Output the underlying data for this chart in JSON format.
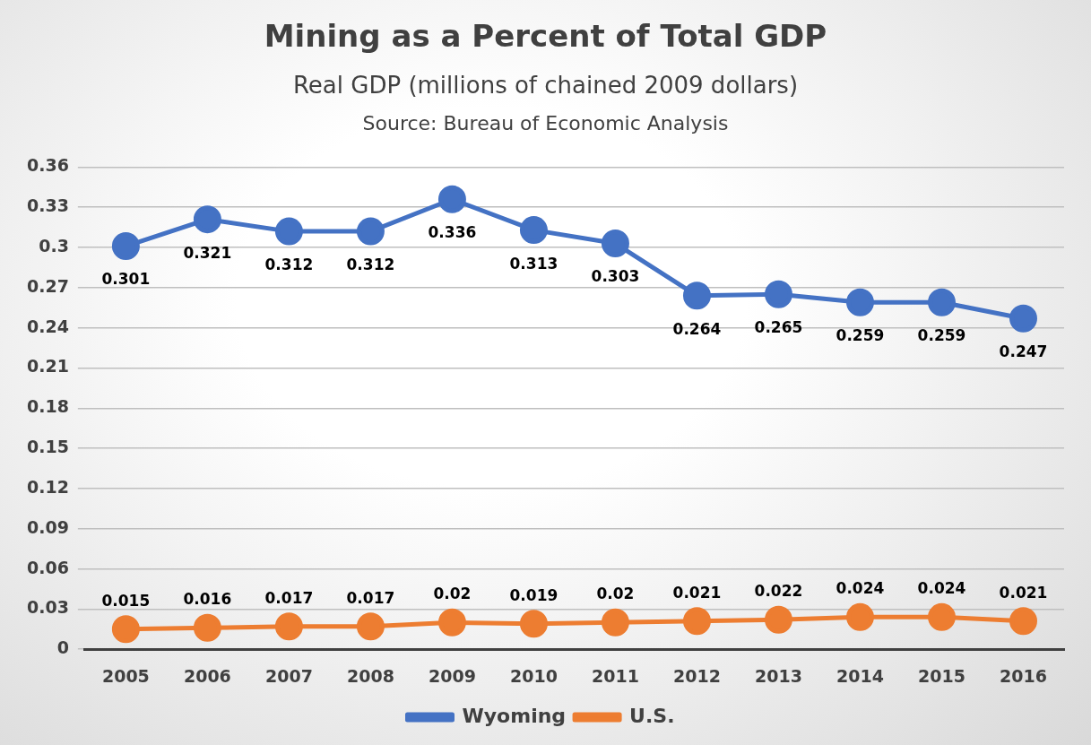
{
  "chart_data": {
    "type": "line",
    "title": "Mining as a Percent of Total GDP",
    "subtitle": "Real GDP (millions of chained 2009 dollars)",
    "annotations": [
      "Source:  Bureau of Economic Analysis"
    ],
    "categories": [
      "2005",
      "2006",
      "2007",
      "2008",
      "2009",
      "2010",
      "2011",
      "2012",
      "2013",
      "2014",
      "2015",
      "2016"
    ],
    "series": [
      {
        "name": "Wyoming",
        "color": "#4472c4",
        "values": [
          0.301,
          0.321,
          0.312,
          0.312,
          0.336,
          0.313,
          0.303,
          0.264,
          0.265,
          0.259,
          0.259,
          0.247
        ]
      },
      {
        "name": "U.S.",
        "color": "#ed7d31",
        "values": [
          0.015,
          0.016,
          0.017,
          0.017,
          0.02,
          0.019,
          0.02,
          0.021,
          0.022,
          0.024,
          0.024,
          0.021
        ]
      }
    ],
    "ylim": [
      0,
      0.36
    ],
    "yticks": [
      0,
      0.03,
      0.06,
      0.09,
      0.12,
      0.15,
      0.18,
      0.21,
      0.24,
      0.27,
      0.3,
      0.33,
      0.36
    ],
    "grid": "y",
    "legend": "bottom",
    "marker": "circle",
    "line_style": "solid",
    "data_labels": true
  }
}
